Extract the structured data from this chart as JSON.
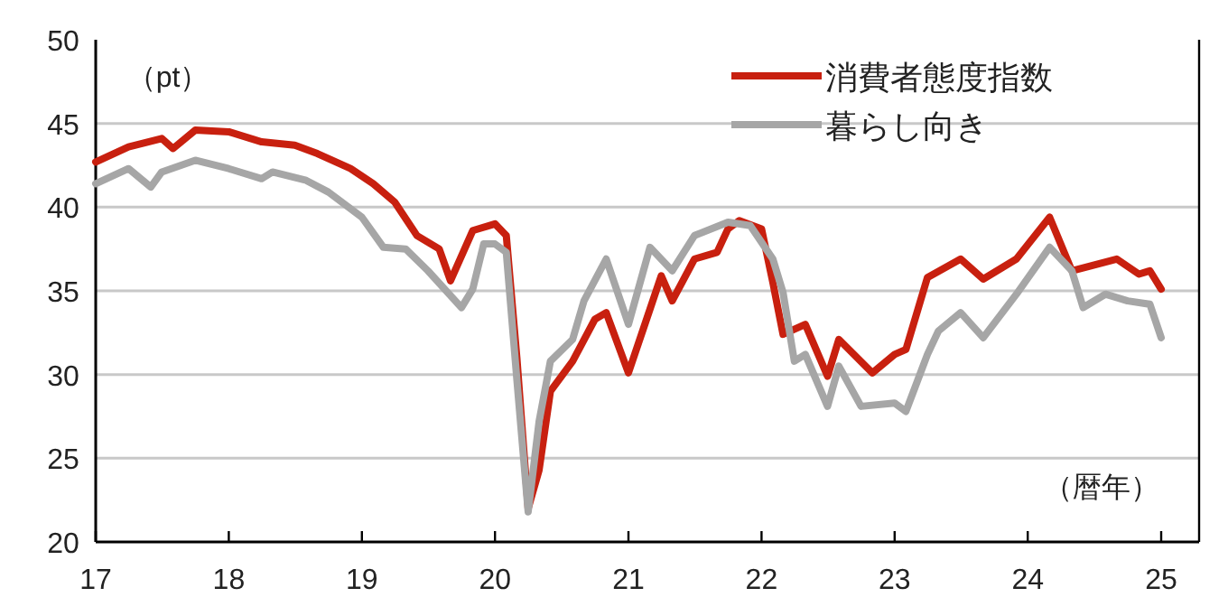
{
  "chart_data": {
    "type": "line",
    "xlabel": "（暦年）",
    "ylabel": "（pt）",
    "xlim": [
      "2017-01-01",
      "2025-04-15"
    ],
    "ylim": [
      20,
      50
    ],
    "yticks": [
      20,
      25,
      30,
      35,
      40,
      45,
      50
    ],
    "xticks": [
      {
        "value": "2017-01-01",
        "label": "17"
      },
      {
        "value": "2018-01-01",
        "label": "18"
      },
      {
        "value": "2019-01-01",
        "label": "19"
      },
      {
        "value": "2020-01-01",
        "label": "20"
      },
      {
        "value": "2021-01-01",
        "label": "21"
      },
      {
        "value": "2022-01-01",
        "label": "22"
      },
      {
        "value": "2023-01-01",
        "label": "23"
      },
      {
        "value": "2024-01-01",
        "label": "24"
      },
      {
        "value": "2025-01-01",
        "label": "25"
      }
    ],
    "grid": "y",
    "legend": "top right",
    "marker": "none",
    "line_style": "solid",
    "series": [
      {
        "name": "消費者態度指数",
        "color": "#c8200f",
        "x": [
          "2017-01",
          "2017-04",
          "2017-07",
          "2017-08",
          "2017-10",
          "2018-01",
          "2018-04",
          "2018-07",
          "2018-09",
          "2018-12",
          "2019-02",
          "2019-04",
          "2019-06",
          "2019-08",
          "2019-09",
          "2019-11",
          "2020-01",
          "2020-02",
          "2020-03",
          "2020-04",
          "2020-05",
          "2020-06",
          "2020-08",
          "2020-10",
          "2020-11",
          "2021-01",
          "2021-03",
          "2021-04",
          "2021-05",
          "2021-07",
          "2021-09",
          "2021-10",
          "2021-11",
          "2022-01",
          "2022-02",
          "2022-03",
          "2022-05",
          "2022-07",
          "2022-08",
          "2022-11",
          "2023-01",
          "2023-02",
          "2023-04",
          "2023-07",
          "2023-09",
          "2023-12",
          "2024-03",
          "2024-05",
          "2024-09",
          "2024-11",
          "2024-12",
          "2025-01"
        ],
        "values": [
          42.7,
          43.6,
          44.1,
          43.5,
          44.6,
          44.5,
          43.9,
          43.7,
          43.2,
          42.3,
          41.4,
          40.3,
          38.3,
          37.5,
          35.6,
          38.6,
          39.0,
          38.3,
          31.0,
          22.0,
          24.3,
          29.0,
          30.8,
          33.3,
          33.7,
          30.1,
          33.9,
          35.9,
          34.4,
          36.9,
          37.3,
          38.7,
          39.2,
          38.7,
          35.5,
          32.4,
          33.0,
          29.9,
          32.1,
          30.1,
          31.2,
          31.5,
          35.8,
          36.9,
          35.7,
          36.9,
          39.4,
          36.2,
          36.9,
          36.0,
          36.2,
          35.1
        ]
      },
      {
        "name": "暮らし向き",
        "color": "#a6a6a6",
        "x": [
          "2017-01",
          "2017-04",
          "2017-06",
          "2017-07",
          "2017-10",
          "2018-01",
          "2018-04",
          "2018-05",
          "2018-08",
          "2018-10",
          "2019-01",
          "2019-03",
          "2019-05",
          "2019-07",
          "2019-10",
          "2019-11",
          "2019-12",
          "2020-01",
          "2020-02",
          "2020-03",
          "2020-04",
          "2020-05",
          "2020-06",
          "2020-08",
          "2020-09",
          "2020-11",
          "2021-01",
          "2021-03",
          "2021-05",
          "2021-07",
          "2021-10",
          "2021-12",
          "2022-02",
          "2022-03",
          "2022-04",
          "2022-05",
          "2022-07",
          "2022-08",
          "2022-10",
          "2023-01",
          "2023-02",
          "2023-04",
          "2023-05",
          "2023-07",
          "2023-09",
          "2023-12",
          "2024-03",
          "2024-05",
          "2024-06",
          "2024-08",
          "2024-10",
          "2024-12",
          "2025-01"
        ],
        "values": [
          41.4,
          42.3,
          41.2,
          42.1,
          42.8,
          42.3,
          41.7,
          42.1,
          41.6,
          40.9,
          39.4,
          37.6,
          37.5,
          36.2,
          34.0,
          35.1,
          37.8,
          37.8,
          37.3,
          29.7,
          21.8,
          27.2,
          30.8,
          32.1,
          34.4,
          36.9,
          33.0,
          37.6,
          36.2,
          38.3,
          39.1,
          38.9,
          36.9,
          34.9,
          30.8,
          31.2,
          28.1,
          30.5,
          28.1,
          28.3,
          27.8,
          31.2,
          32.6,
          33.7,
          32.2,
          34.8,
          37.6,
          36.2,
          34.0,
          34.8,
          34.4,
          34.2,
          32.2
        ]
      }
    ]
  }
}
